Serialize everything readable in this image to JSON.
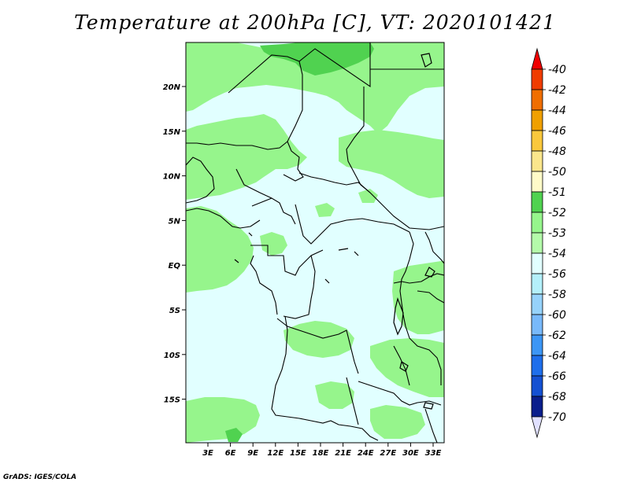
{
  "title": "Temperature at 200hPa [C], VT: 2020101421",
  "credit": "GrADS: IGES/COLA",
  "map": {
    "lon_labels": [
      "3E",
      "6E",
      "9E",
      "12E",
      "15E",
      "18E",
      "21E",
      "24E",
      "27E",
      "30E",
      "33E"
    ],
    "lat_labels": [
      "20N",
      "15N",
      "10N",
      "5N",
      "EQ",
      "5S",
      "10S",
      "15S"
    ],
    "background_color": "#e1ffff",
    "field_colors": {
      "minus53": "#96f58c",
      "minus52": "#50d250"
    }
  },
  "colorbar": {
    "levels": [
      {
        "label": "-40",
        "color": "#f00000"
      },
      {
        "label": "-42",
        "color": "#f03c00"
      },
      {
        "label": "-44",
        "color": "#f06e00"
      },
      {
        "label": "-46",
        "color": "#f0a000"
      },
      {
        "label": "-48",
        "color": "#fac83c"
      },
      {
        "label": "-50",
        "color": "#fae68c"
      },
      {
        "label": "-51",
        "color": "#fffac8"
      },
      {
        "label": "-52",
        "color": "#50d250"
      },
      {
        "label": "-53",
        "color": "#96f58c"
      },
      {
        "label": "-54",
        "color": "#b4faaa"
      },
      {
        "label": "-56",
        "color": "#e1ffff"
      },
      {
        "label": "-58",
        "color": "#b4f0fa"
      },
      {
        "label": "-60",
        "color": "#96d2fa"
      },
      {
        "label": "-62",
        "color": "#78b9fa"
      },
      {
        "label": "-64",
        "color": "#3c96f5"
      },
      {
        "label": "-66",
        "color": "#1e6eeb"
      },
      {
        "label": "-68",
        "color": "#1450d2"
      },
      {
        "label": "-70",
        "color": "#0a1e8c"
      }
    ],
    "below_color": "#e1e1ff"
  }
}
